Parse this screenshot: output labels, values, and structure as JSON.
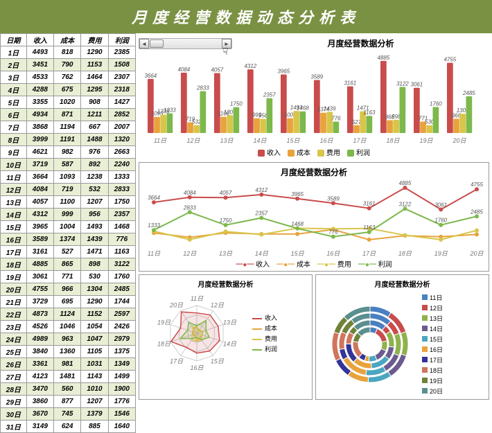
{
  "title": "月度经营数据动态分析表",
  "table": {
    "columns": [
      "日期",
      "收入",
      "成本",
      "费用",
      "利润"
    ],
    "rows": [
      [
        "1日",
        4493,
        818,
        1290,
        2385
      ],
      [
        "2日",
        3451,
        790,
        1153,
        1508
      ],
      [
        "3日",
        4533,
        762,
        1464,
        2307
      ],
      [
        "4日",
        4288,
        675,
        1295,
        2318
      ],
      [
        "5日",
        3355,
        1020,
        908,
        1427
      ],
      [
        "6日",
        4934,
        871,
        1211,
        2852
      ],
      [
        "7日",
        3868,
        1194,
        667,
        2007
      ],
      [
        "8日",
        3999,
        1191,
        1488,
        1320
      ],
      [
        "9日",
        4621,
        982,
        976,
        2663
      ],
      [
        "10日",
        3719,
        587,
        892,
        2240
      ],
      [
        "11日",
        3664,
        1093,
        1238,
        1333
      ],
      [
        "12日",
        4084,
        719,
        532,
        2833
      ],
      [
        "13日",
        4057,
        1100,
        1207,
        1750
      ],
      [
        "14日",
        4312,
        999,
        956,
        2357
      ],
      [
        "15日",
        3965,
        1004,
        1493,
        1468
      ],
      [
        "16日",
        3589,
        1374,
        1439,
        776
      ],
      [
        "17日",
        3161,
        527,
        1471,
        1163
      ],
      [
        "18日",
        4885,
        865,
        898,
        3122
      ],
      [
        "19日",
        3061,
        771,
        530,
        1760
      ],
      [
        "20日",
        4755,
        966,
        1304,
        2485
      ],
      [
        "21日",
        3729,
        695,
        1290,
        1744
      ],
      [
        "22日",
        4873,
        1124,
        1152,
        2597
      ],
      [
        "23日",
        4526,
        1046,
        1054,
        2426
      ],
      [
        "24日",
        4989,
        963,
        1047,
        2979
      ],
      [
        "25日",
        3840,
        1360,
        1105,
        1375
      ],
      [
        "26日",
        3361,
        981,
        1031,
        1349
      ],
      [
        "27日",
        4123,
        1481,
        1143,
        1499
      ],
      [
        "28日",
        3470,
        560,
        1010,
        1900
      ],
      [
        "29日",
        3860,
        877,
        1207,
        1776
      ],
      [
        "30日",
        3670,
        745,
        1379,
        1546
      ],
      [
        "31日",
        3149,
        624,
        885,
        1640
      ]
    ]
  },
  "chart_window": {
    "indices": [
      10,
      11,
      12,
      13,
      14,
      15,
      16,
      17,
      18,
      19
    ],
    "xlabels": [
      "11日",
      "12日",
      "13日",
      "14日",
      "15日",
      "16日",
      "17日",
      "18日",
      "19日",
      "20日"
    ]
  },
  "series": {
    "names": [
      "收入",
      "成本",
      "费用",
      "利润"
    ],
    "colors": [
      "#c94c4c",
      "#e8a33d",
      "#d8c54a",
      "#7db84c"
    ]
  },
  "bar_chart": {
    "title": "月度经营数据分析",
    "ymax": 5000,
    "bg": "#ffffff"
  },
  "line_chart": {
    "title": "月度经营数据分析",
    "ymax": 5000
  },
  "radar_chart": {
    "title": "月度经营数据分析",
    "axes": [
      "11日",
      "12日",
      "13日",
      "14日",
      "15日",
      "16日",
      "17日",
      "18日",
      "19日",
      "20日"
    ]
  },
  "donut_chart": {
    "title": "月度经营数据分析",
    "colors": [
      "#4a7fc1",
      "#c94c4c",
      "#8fb24c",
      "#6b5b8f",
      "#4aa6c1",
      "#e8a33d",
      "#333399",
      "#d0755e",
      "#708238",
      "#5a8f8f"
    ],
    "labels": [
      "11日",
      "12日",
      "13日",
      "14日",
      "15日",
      "16日",
      "17日",
      "18日",
      "19日",
      "20日"
    ]
  }
}
